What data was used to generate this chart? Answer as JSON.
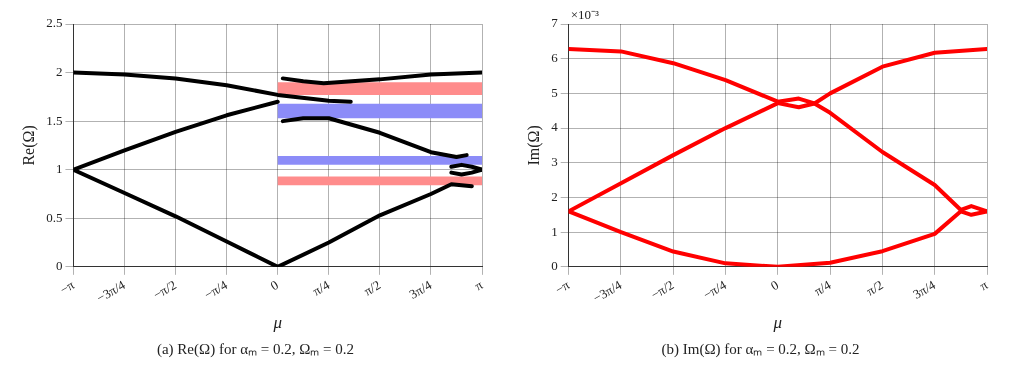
{
  "chart_data": [
    {
      "type": "line",
      "title": "(a) Re(Ω) for αₘ = 0.2, Ωₘ = 0.2",
      "xlabel": "μ",
      "ylabel": "Re(Ω)",
      "xlim": [
        -3.1416,
        3.1416
      ],
      "ylim": [
        0,
        2.5
      ],
      "xticks": [
        {
          "value": -3.1416,
          "label": "−π"
        },
        {
          "value": -2.3562,
          "label": "−3π/4"
        },
        {
          "value": -1.5708,
          "label": "−π/2"
        },
        {
          "value": -0.7854,
          "label": "−π/4"
        },
        {
          "value": 0,
          "label": "0"
        },
        {
          "value": 0.7854,
          "label": "π/4"
        },
        {
          "value": 1.5708,
          "label": "π/2"
        },
        {
          "value": 2.3562,
          "label": "3π/4"
        },
        {
          "value": 3.1416,
          "label": "π"
        }
      ],
      "yticks": [
        0,
        0.5,
        1,
        1.5,
        2,
        2.5
      ],
      "grid": true,
      "marker": "none",
      "line_style": "solid",
      "bands": [
        {
          "axis": "y",
          "from": 1.77,
          "to": 1.9,
          "color": "#ff8c8c"
        },
        {
          "axis": "y",
          "from": 1.53,
          "to": 1.68,
          "color": "#8c8cf8"
        },
        {
          "axis": "y",
          "from": 1.05,
          "to": 1.14,
          "color": "#8c8cf8"
        },
        {
          "axis": "y",
          "from": 0.84,
          "to": 0.93,
          "color": "#ff8c8c"
        }
      ],
      "series": [
        {
          "color": "#000000",
          "x": [
            -3.1416,
            -2.3562,
            -1.5708,
            -0.7854,
            0,
            0.7854,
            1.1231
          ],
          "values": [
            2.0,
            1.98,
            1.94,
            1.87,
            1.77,
            1.71,
            1.7
          ]
        },
        {
          "color": "#000000",
          "x": [
            -3.1416,
            -2.3562,
            -1.5708,
            -0.7854,
            0
          ],
          "values": [
            1.0,
            1.2,
            1.39,
            1.56,
            1.7
          ]
        },
        {
          "color": "#000000",
          "x": [
            0.0785,
            0.3927,
            0.7069,
            1.5708,
            2.3562,
            3.1416
          ],
          "values": [
            1.94,
            1.91,
            1.89,
            1.93,
            1.98,
            2.0
          ]
        },
        {
          "color": "#000000",
          "x": [
            0.0785,
            0.3927,
            0.7854,
            1.5708,
            2.3562,
            2.7489,
            2.906
          ],
          "values": [
            1.5,
            1.53,
            1.53,
            1.38,
            1.18,
            1.13,
            1.15
          ]
        },
        {
          "color": "#000000",
          "x": [
            -3.1416,
            -2.3562,
            -1.5708,
            -0.7854,
            0
          ],
          "values": [
            1.0,
            0.76,
            0.52,
            0.26,
            0
          ]
        },
        {
          "color": "#000000",
          "x": [
            0,
            0.7854,
            1.5708,
            2.3562,
            2.6704,
            2.9845
          ],
          "values": [
            0,
            0.25,
            0.53,
            0.75,
            0.85,
            0.83
          ]
        },
        {
          "color": "#000000",
          "x": [
            2.6704,
            2.8274,
            2.9845,
            3.1416
          ],
          "values": [
            1.03,
            1.05,
            1.03,
            1.0
          ]
        },
        {
          "color": "#000000",
          "x": [
            2.6704,
            2.8274,
            2.9845,
            3.1416
          ],
          "values": [
            0.97,
            0.95,
            0.97,
            1.0
          ]
        }
      ]
    },
    {
      "type": "line",
      "title": "(b) Im(Ω) for αₘ = 0.2, Ωₘ = 0.2",
      "xlabel": "μ",
      "ylabel": "Im(Ω)",
      "annotations": [
        "×10⁻³"
      ],
      "xlim": [
        -3.1416,
        3.1416
      ],
      "ylim": [
        0,
        7
      ],
      "xticks": [
        {
          "value": -3.1416,
          "label": "−π"
        },
        {
          "value": -2.3562,
          "label": "−3π/4"
        },
        {
          "value": -1.5708,
          "label": "−π/2"
        },
        {
          "value": -0.7854,
          "label": "−π/4"
        },
        {
          "value": 0,
          "label": "0"
        },
        {
          "value": 0.7854,
          "label": "π/4"
        },
        {
          "value": 1.5708,
          "label": "π/2"
        },
        {
          "value": 2.3562,
          "label": "3π/4"
        },
        {
          "value": 3.1416,
          "label": "π"
        }
      ],
      "yticks": [
        0,
        1,
        2,
        3,
        4,
        5,
        6,
        7
      ],
      "grid": true,
      "marker": "none",
      "line_style": "solid",
      "series": [
        {
          "color": "#ff0000",
          "x": [
            -3.1416,
            -2.3562,
            -1.5708,
            -0.7854,
            0,
            0.3142,
            0.5498,
            0.7854,
            1.5708,
            2.3562,
            2.7489,
            2.906,
            3.1416
          ],
          "values": [
            6.28,
            6.21,
            5.87,
            5.38,
            4.76,
            4.85,
            4.71,
            4.44,
            3.31,
            2.36,
            1.64,
            1.75,
            1.6
          ]
        },
        {
          "color": "#ff0000",
          "x": [
            -3.1416,
            -2.3562,
            -1.5708,
            -0.7854,
            0,
            0.3142,
            0.5498,
            0.7854,
            1.5708,
            2.3562,
            3.1416
          ],
          "values": [
            1.6,
            2.41,
            3.22,
            4.0,
            4.72,
            4.6,
            4.71,
            5.0,
            5.77,
            6.17,
            6.28
          ]
        },
        {
          "color": "#ff0000",
          "x": [
            -3.1416,
            -2.3562,
            -1.5708,
            -0.7854,
            0,
            0.7854,
            1.5708,
            2.3562,
            2.7489,
            2.906,
            3.1416
          ],
          "values": [
            1.6,
            1.0,
            0.44,
            0.1,
            0,
            0.12,
            0.45,
            0.95,
            1.6,
            1.5,
            1.6
          ]
        }
      ]
    }
  ]
}
